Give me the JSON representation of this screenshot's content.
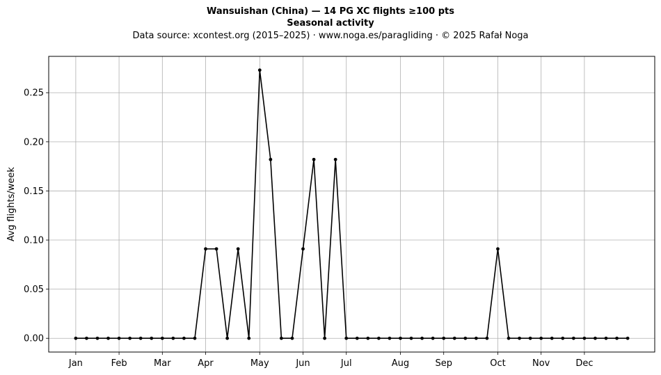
{
  "header": {
    "title": "Wansuishan (China)  —  14 PG XC flights ≥100 pts",
    "subtitle": "Seasonal activity",
    "source": "Data source: xcontest.org (2015–2025)  ·  www.noga.es/paragliding  ·  © 2025 Rafał Noga"
  },
  "chart_data": {
    "type": "line",
    "title": "Wansuishan (China)  —  14 PG XC flights ≥100 pts",
    "subtitle": "Seasonal activity",
    "xlabel": "",
    "ylabel": "Avg flights/week",
    "x_unit": "week of year",
    "xlim": [
      -2.5,
      53.5
    ],
    "ylim": [
      -0.014,
      0.287
    ],
    "grid": true,
    "line_color": "#000000",
    "marker_color": "#000000",
    "grid_color": "#b0b0b0",
    "x_ticks": [
      {
        "label": "Jan",
        "x": 0
      },
      {
        "label": "Feb",
        "x": 4
      },
      {
        "label": "Mar",
        "x": 8
      },
      {
        "label": "Apr",
        "x": 12
      },
      {
        "label": "May",
        "x": 17
      },
      {
        "label": "Jun",
        "x": 21
      },
      {
        "label": "Jul",
        "x": 25
      },
      {
        "label": "Aug",
        "x": 30
      },
      {
        "label": "Sep",
        "x": 34
      },
      {
        "label": "Oct",
        "x": 39
      },
      {
        "label": "Nov",
        "x": 43
      },
      {
        "label": "Dec",
        "x": 47
      }
    ],
    "y_ticks": [
      {
        "label": "0.00",
        "y": 0
      },
      {
        "label": "0.05",
        "y": 0.05
      },
      {
        "label": "0.10",
        "y": 0.1
      },
      {
        "label": "0.15",
        "y": 0.15
      },
      {
        "label": "0.20",
        "y": 0.2
      },
      {
        "label": "0.25",
        "y": 0.25
      }
    ],
    "x": [
      0,
      1,
      2,
      3,
      4,
      5,
      6,
      7,
      8,
      9,
      10,
      11,
      12,
      13,
      14,
      15,
      16,
      17,
      18,
      19,
      20,
      21,
      22,
      23,
      24,
      25,
      26,
      27,
      28,
      29,
      30,
      31,
      32,
      33,
      34,
      35,
      36,
      37,
      38,
      39,
      40,
      41,
      42,
      43,
      44,
      45,
      46,
      47,
      48,
      49,
      50,
      51
    ],
    "values": [
      0,
      0,
      0,
      0,
      0,
      0,
      0,
      0,
      0,
      0,
      0,
      0,
      0.091,
      0.091,
      0,
      0.091,
      0,
      0.273,
      0.182,
      0,
      0,
      0.091,
      0.182,
      0,
      0.182,
      0,
      0,
      0,
      0,
      0,
      0,
      0,
      0,
      0,
      0,
      0,
      0,
      0,
      0,
      0.091,
      0,
      0,
      0,
      0,
      0,
      0,
      0,
      0,
      0,
      0,
      0,
      0
    ]
  }
}
